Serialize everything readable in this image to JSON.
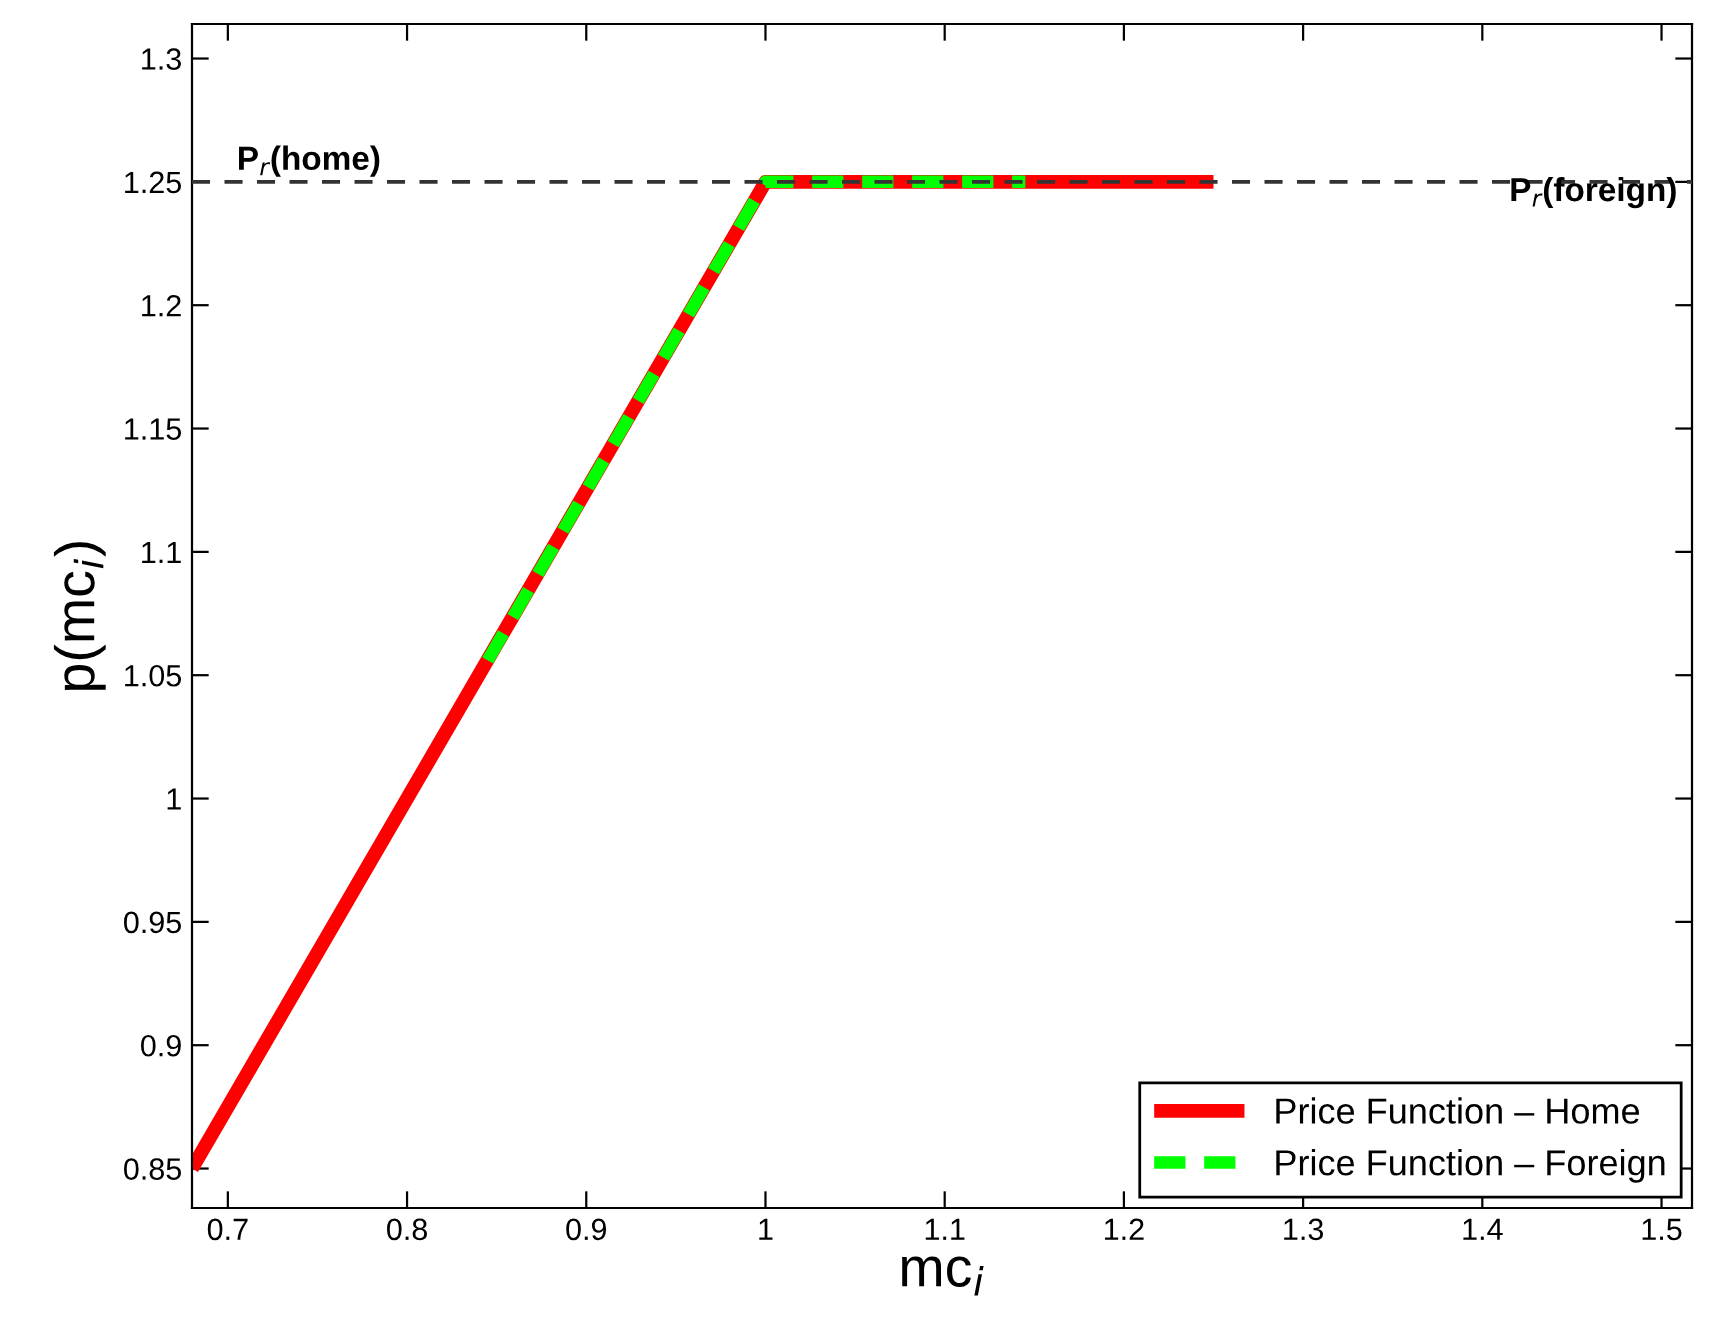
{
  "chart_data": {
    "type": "line",
    "xlabel": "mc$_{i}$",
    "ylabel": "p(mc$_{i}$)",
    "xlim": [
      0.68,
      1.517
    ],
    "ylim": [
      0.834,
      1.314
    ],
    "xticks": [
      0.7,
      0.8,
      0.9,
      1,
      1.1,
      1.2,
      1.3,
      1.4,
      1.5
    ],
    "yticks": [
      0.85,
      0.9,
      0.95,
      1,
      1.05,
      1.1,
      1.15,
      1.2,
      1.25,
      1.3
    ],
    "series": [
      {
        "name": "Price Function – Home",
        "color": "#ff0000",
        "line_style": "solid",
        "x": [
          0.68,
          1.0,
          1.25
        ],
        "values": [
          0.85,
          1.25,
          1.25
        ]
      },
      {
        "name": "Price Function – Foreign",
        "color": "#00ff00",
        "line_style": "dashed",
        "x": [
          0.845,
          1.0,
          1.145
        ],
        "values": [
          1.056,
          1.25,
          1.25
        ]
      }
    ],
    "ref_lines": [
      {
        "axis": "y",
        "value": 1.25,
        "color": "#333333",
        "line_style": "dashed"
      }
    ],
    "annotations": [
      {
        "text": "P$_{r}$(home)",
        "x": 0.705,
        "y": 1.25
      },
      {
        "text": "P$_{r}$(foreign)",
        "x": 1.415,
        "y": 1.25
      }
    ],
    "legend": "bottom right",
    "grid": false
  }
}
